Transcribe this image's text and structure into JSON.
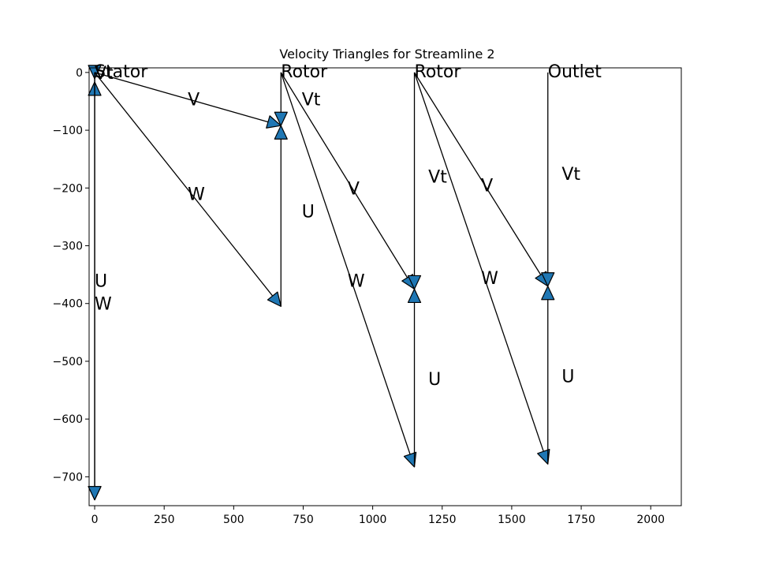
{
  "chart_data": {
    "type": "line",
    "title": "Velocity Triangles for Streamline 2",
    "xlabel": "",
    "ylabel": "",
    "xlim": [
      -20,
      2110
    ],
    "ylim": [
      -750,
      8
    ],
    "xticks": [
      0,
      250,
      500,
      750,
      1000,
      1250,
      1500,
      1750,
      2000
    ],
    "yticks": [
      0,
      -100,
      -200,
      -300,
      -400,
      -500,
      -600,
      -700
    ],
    "grid": false,
    "arrow_color": "#1f77b4",
    "line_color": "#000000",
    "stations": [
      {
        "label": "Stator",
        "x": 0,
        "y": 0
      },
      {
        "label": "Rotor",
        "x": 670,
        "y": 0
      },
      {
        "label": "Rotor",
        "x": 1150,
        "y": 0
      },
      {
        "label": "Outlet",
        "x": 1630,
        "y": 0
      }
    ],
    "vectors": [
      {
        "label": "Vt",
        "x0": 0,
        "y0": 0,
        "x1": 0,
        "y1": 0,
        "lx": 0,
        "ly": 0
      },
      {
        "label": "U",
        "x0": 0,
        "y0": 0,
        "x1": 0,
        "y1": -740,
        "lx": 0,
        "ly": -360
      },
      {
        "label": "W",
        "x0": 0,
        "y0": 0,
        "x1": 0,
        "y1": -740,
        "lx": 0,
        "ly": -400
      },
      {
        "label": "V",
        "x0": 0,
        "y0": 0,
        "x1": 670,
        "y1": -92,
        "lx": 335,
        "ly": -46
      },
      {
        "label": "W",
        "x0": 0,
        "y0": 0,
        "x1": 670,
        "y1": -405,
        "lx": 335,
        "ly": -210
      },
      {
        "label": "Vt",
        "x0": 670,
        "y0": 0,
        "x1": 670,
        "y1": -92,
        "lx": 745,
        "ly": -46
      },
      {
        "label": "U",
        "x0": 670,
        "y0": -405,
        "x1": 670,
        "y1": -92,
        "lx": 745,
        "ly": -240
      },
      {
        "label": "V",
        "x0": 670,
        "y0": 0,
        "x1": 1150,
        "y1": -375,
        "lx": 910,
        "ly": -200
      },
      {
        "label": "W",
        "x0": 670,
        "y0": 0,
        "x1": 1150,
        "y1": -683,
        "lx": 910,
        "ly": -360
      },
      {
        "label": "Vt",
        "x0": 1150,
        "y0": 0,
        "x1": 1150,
        "y1": -375,
        "lx": 1200,
        "ly": -180
      },
      {
        "label": "U",
        "x0": 1150,
        "y0": -683,
        "x1": 1150,
        "y1": -375,
        "lx": 1200,
        "ly": -530
      },
      {
        "label": "V",
        "x0": 1150,
        "y0": 0,
        "x1": 1630,
        "y1": -370,
        "lx": 1390,
        "ly": -195
      },
      {
        "label": "W",
        "x0": 1150,
        "y0": 0,
        "x1": 1630,
        "y1": -678,
        "lx": 1390,
        "ly": -355
      },
      {
        "label": "Vt",
        "x0": 1630,
        "y0": 0,
        "x1": 1630,
        "y1": -370,
        "lx": 1680,
        "ly": -175
      },
      {
        "label": "U",
        "x0": 1630,
        "y0": -678,
        "x1": 1630,
        "y1": -370,
        "lx": 1680,
        "ly": -525
      }
    ]
  }
}
